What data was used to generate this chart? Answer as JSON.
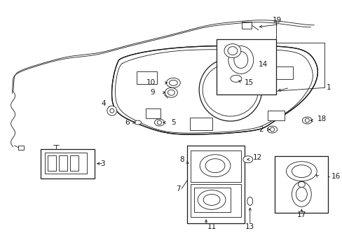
{
  "background_color": "#ffffff",
  "line_color": "#1a1a1a",
  "figsize": [
    4.89,
    3.6
  ],
  "dpi": 100,
  "label_fs": 7.5,
  "lw_thin": 0.6,
  "lw_med": 0.9,
  "lw_thick": 1.2
}
